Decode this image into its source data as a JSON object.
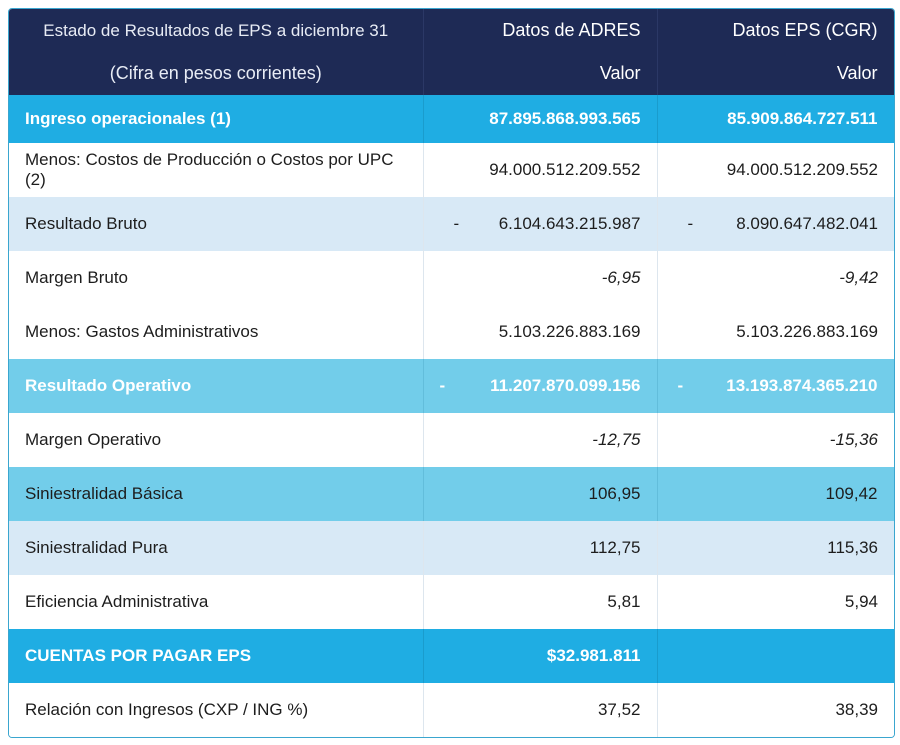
{
  "header": {
    "title_line1": "Estado de Resultados de EPS a diciembre 31",
    "title_line2": "(Cifra en pesos corrientes)",
    "col_adres": "Datos de ADRES",
    "col_eps": "Datos EPS (CGR)",
    "sub_adres": "Valor",
    "sub_eps": "Valor"
  },
  "rows": [
    {
      "label": "Ingreso operacionales (1)",
      "adres": "87.895.868.993.565",
      "eps": "85.909.864.727.511"
    },
    {
      "label": "Menos: Costos de Producción o Costos por UPC (2)",
      "adres": "94.000.512.209.552",
      "eps": "94.000.512.209.552"
    },
    {
      "label": "Resultado Bruto",
      "adres_sign": "-",
      "adres": "6.104.643.215.987",
      "eps_sign": "-",
      "eps": "8.090.647.482.041"
    },
    {
      "label": "Margen Bruto",
      "adres": "-6,95",
      "eps": "-9,42"
    },
    {
      "label": "Menos: Gastos Administrativos",
      "adres": "5.103.226.883.169",
      "eps": "5.103.226.883.169"
    },
    {
      "label": "Resultado Operativo",
      "adres_sign": "-",
      "adres": "11.207.870.099.156",
      "eps_sign": "-",
      "eps": "13.193.874.365.210"
    },
    {
      "label": "Margen Operativo",
      "adres": "-12,75",
      "eps": "-15,36"
    },
    {
      "label": "Siniestralidad Básica",
      "adres": "106,95",
      "eps": "109,42"
    },
    {
      "label": "Siniestralidad Pura",
      "adres": "112,75",
      "eps": "115,36"
    },
    {
      "label": "Eficiencia Administrativa",
      "adres": "5,81",
      "eps": "5,94"
    },
    {
      "label": "CUENTAS POR PAGAR EPS",
      "adres": "$32.981.811",
      "eps": ""
    },
    {
      "label": "Relación con Ingresos (CXP / ING %)",
      "adres": "37,52",
      "eps": "38,39"
    }
  ],
  "colors": {
    "header": "#1e2a55",
    "bright": "#1fade3",
    "mid": "#72cdea",
    "pale": "#d8e9f6"
  }
}
